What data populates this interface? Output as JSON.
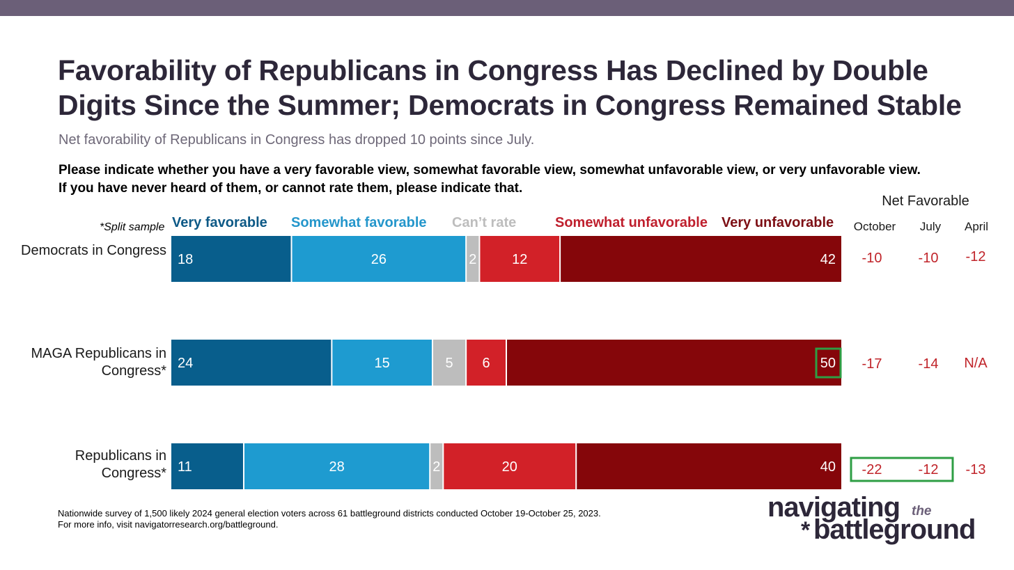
{
  "title": "Favorability of Republicans in Congress Has Declined by Double Digits Since the Summer; Democrats in Congress Remained Stable",
  "subtitle": "Net favorability of Republicans in Congress has dropped 10 points since July.",
  "question": "Please indicate whether you have a very favorable view, somewhat favorable view, somewhat unfavorable view, or very unfavorable view. If you have never heard of them, or cannot rate them, please indicate that.",
  "split_note": "*Split sample",
  "net_favorable": {
    "header": "Net Favorable",
    "columns": [
      "October",
      "July",
      "April"
    ],
    "rows": [
      [
        "-10",
        "-10",
        "-12"
      ],
      [
        "-17",
        "-14",
        "N/A"
      ],
      [
        "-22",
        "-12",
        "-13"
      ]
    ],
    "highlight_color": "#2e9e44"
  },
  "chart_data": {
    "type": "bar",
    "orientation": "horizontal",
    "stacked": true,
    "categories": [
      "Democrats in Congress",
      "MAGA Republicans in Congress*",
      "Republicans in Congress*"
    ],
    "series": [
      {
        "name": "Very favorable",
        "color": "#085e8c",
        "legend_color": "#0d5986",
        "values": [
          18,
          24,
          11
        ]
      },
      {
        "name": "Somewhat favorable",
        "color": "#1e9bd0",
        "legend_color": "#2496cb",
        "values": [
          26,
          15,
          28
        ]
      },
      {
        "name": "Can’t rate",
        "color": "#bdbdbd",
        "legend_color": "#bdbdbd",
        "values": [
          2,
          5,
          2
        ]
      },
      {
        "name": "Somewhat unfavorable",
        "color": "#d22128",
        "legend_color": "#bf1f2d",
        "values": [
          12,
          6,
          20
        ]
      },
      {
        "name": "Very unfavorable",
        "color": "#85060a",
        "legend_color": "#7d0f14",
        "values": [
          42,
          50,
          40
        ]
      }
    ],
    "highlighted_value": {
      "category": "MAGA Republicans in Congress*",
      "series": "Very unfavorable",
      "value": 50
    }
  },
  "footnote": {
    "line1": "Nationwide survey of 1,500 likely 2024 general election voters across 61 battleground districts conducted October 19-October 25, 2023.",
    "line2": "For more info, visit navigatorresearch.org/battleground."
  },
  "logo": {
    "line1": "navigating",
    "the": "the",
    "star": "*",
    "line2": "battleground"
  }
}
